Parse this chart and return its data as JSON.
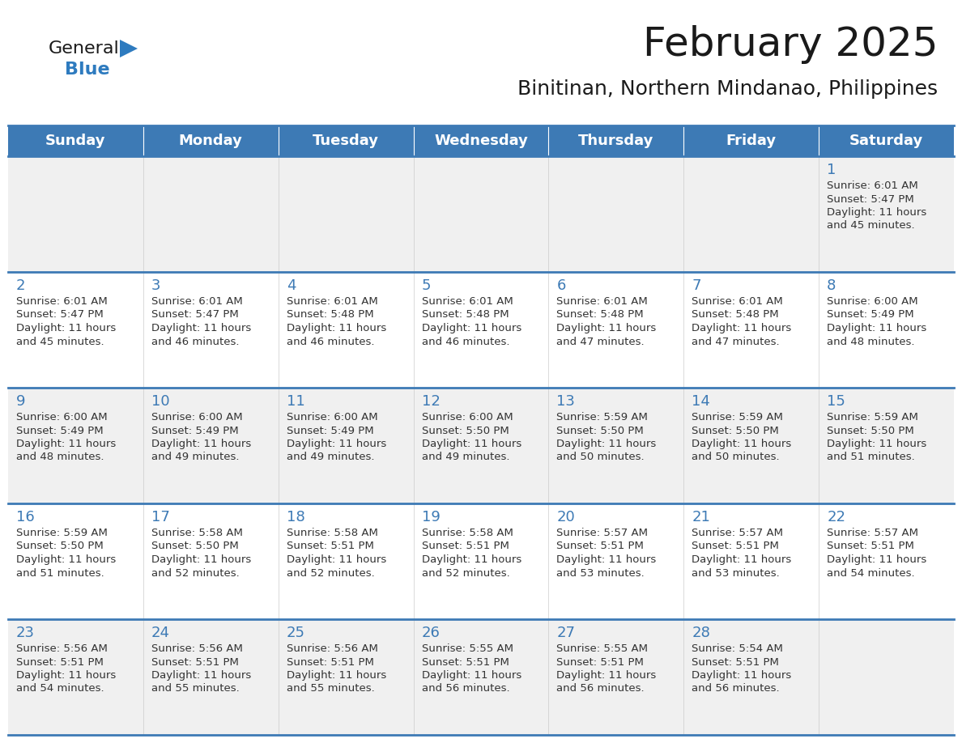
{
  "title": "February 2025",
  "subtitle": "Binitinan, Northern Mindanao, Philippines",
  "header_bg": "#3d7ab5",
  "header_text_color": "#ffffff",
  "cell_bg_light": "#f0f0f0",
  "cell_bg_white": "#ffffff",
  "day_headers": [
    "Sunday",
    "Monday",
    "Tuesday",
    "Wednesday",
    "Thursday",
    "Friday",
    "Saturday"
  ],
  "text_color": "#333333",
  "day_num_color": "#3d7ab5",
  "logo_general_color": "#1a1a1a",
  "logo_blue_color": "#2e7bbf",
  "separator_color": "#3d7ab5",
  "calendar": [
    [
      null,
      null,
      null,
      null,
      null,
      null,
      1
    ],
    [
      2,
      3,
      4,
      5,
      6,
      7,
      8
    ],
    [
      9,
      10,
      11,
      12,
      13,
      14,
      15
    ],
    [
      16,
      17,
      18,
      19,
      20,
      21,
      22
    ],
    [
      23,
      24,
      25,
      26,
      27,
      28,
      null
    ]
  ],
  "cell_data": {
    "1": {
      "sunrise": "6:01 AM",
      "sunset": "5:47 PM",
      "daylight": "11 hours and 45 minutes"
    },
    "2": {
      "sunrise": "6:01 AM",
      "sunset": "5:47 PM",
      "daylight": "11 hours and 45 minutes"
    },
    "3": {
      "sunrise": "6:01 AM",
      "sunset": "5:47 PM",
      "daylight": "11 hours and 46 minutes"
    },
    "4": {
      "sunrise": "6:01 AM",
      "sunset": "5:48 PM",
      "daylight": "11 hours and 46 minutes"
    },
    "5": {
      "sunrise": "6:01 AM",
      "sunset": "5:48 PM",
      "daylight": "11 hours and 46 minutes"
    },
    "6": {
      "sunrise": "6:01 AM",
      "sunset": "5:48 PM",
      "daylight": "11 hours and 47 minutes"
    },
    "7": {
      "sunrise": "6:01 AM",
      "sunset": "5:48 PM",
      "daylight": "11 hours and 47 minutes"
    },
    "8": {
      "sunrise": "6:00 AM",
      "sunset": "5:49 PM",
      "daylight": "11 hours and 48 minutes"
    },
    "9": {
      "sunrise": "6:00 AM",
      "sunset": "5:49 PM",
      "daylight": "11 hours and 48 minutes"
    },
    "10": {
      "sunrise": "6:00 AM",
      "sunset": "5:49 PM",
      "daylight": "11 hours and 49 minutes"
    },
    "11": {
      "sunrise": "6:00 AM",
      "sunset": "5:49 PM",
      "daylight": "11 hours and 49 minutes"
    },
    "12": {
      "sunrise": "6:00 AM",
      "sunset": "5:50 PM",
      "daylight": "11 hours and 49 minutes"
    },
    "13": {
      "sunrise": "5:59 AM",
      "sunset": "5:50 PM",
      "daylight": "11 hours and 50 minutes"
    },
    "14": {
      "sunrise": "5:59 AM",
      "sunset": "5:50 PM",
      "daylight": "11 hours and 50 minutes"
    },
    "15": {
      "sunrise": "5:59 AM",
      "sunset": "5:50 PM",
      "daylight": "11 hours and 51 minutes"
    },
    "16": {
      "sunrise": "5:59 AM",
      "sunset": "5:50 PM",
      "daylight": "11 hours and 51 minutes"
    },
    "17": {
      "sunrise": "5:58 AM",
      "sunset": "5:50 PM",
      "daylight": "11 hours and 52 minutes"
    },
    "18": {
      "sunrise": "5:58 AM",
      "sunset": "5:51 PM",
      "daylight": "11 hours and 52 minutes"
    },
    "19": {
      "sunrise": "5:58 AM",
      "sunset": "5:51 PM",
      "daylight": "11 hours and 52 minutes"
    },
    "20": {
      "sunrise": "5:57 AM",
      "sunset": "5:51 PM",
      "daylight": "11 hours and 53 minutes"
    },
    "21": {
      "sunrise": "5:57 AM",
      "sunset": "5:51 PM",
      "daylight": "11 hours and 53 minutes"
    },
    "22": {
      "sunrise": "5:57 AM",
      "sunset": "5:51 PM",
      "daylight": "11 hours and 54 minutes"
    },
    "23": {
      "sunrise": "5:56 AM",
      "sunset": "5:51 PM",
      "daylight": "11 hours and 54 minutes"
    },
    "24": {
      "sunrise": "5:56 AM",
      "sunset": "5:51 PM",
      "daylight": "11 hours and 55 minutes"
    },
    "25": {
      "sunrise": "5:56 AM",
      "sunset": "5:51 PM",
      "daylight": "11 hours and 55 minutes"
    },
    "26": {
      "sunrise": "5:55 AM",
      "sunset": "5:51 PM",
      "daylight": "11 hours and 56 minutes"
    },
    "27": {
      "sunrise": "5:55 AM",
      "sunset": "5:51 PM",
      "daylight": "11 hours and 56 minutes"
    },
    "28": {
      "sunrise": "5:54 AM",
      "sunset": "5:51 PM",
      "daylight": "11 hours and 56 minutes"
    }
  },
  "title_fontsize": 36,
  "subtitle_fontsize": 18,
  "header_fontsize": 13,
  "daynum_fontsize": 13,
  "cell_text_fontsize": 9.5
}
